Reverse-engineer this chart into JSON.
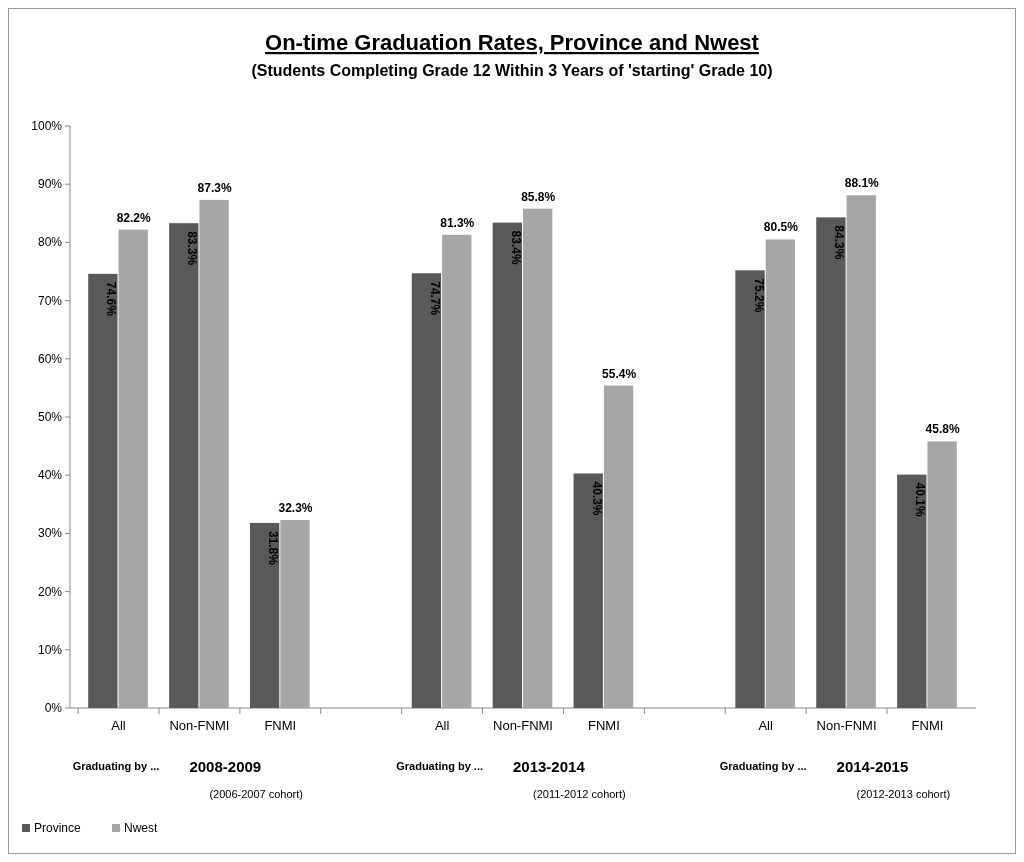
{
  "chart_data": {
    "type": "bar",
    "title": "On-time Graduation Rates, Province and Nwest",
    "subtitle": "(Students Completing Grade 12 Within 3 Years of 'starting' Grade 10)",
    "categories": [
      "All",
      "Non-FNMI",
      "FNMI",
      null,
      "All",
      "Non-FNMI",
      "FNMI",
      null,
      "All",
      "Non-FNMI",
      "FNMI"
    ],
    "series": [
      {
        "name": "Province",
        "color": "#595959",
        "values": [
          74.6,
          83.3,
          31.8,
          null,
          74.7,
          83.4,
          40.3,
          null,
          75.2,
          84.3,
          40.1
        ],
        "value_labels": [
          "74.6%",
          "83.3%",
          "31.8%",
          null,
          "74.7%",
          "83.4%",
          "40.3%",
          null,
          "75.2%",
          "84.3%",
          "40.1%"
        ]
      },
      {
        "name": "Nwest",
        "color": "#a6a6a6",
        "values": [
          82.2,
          87.3,
          32.3,
          null,
          81.3,
          85.8,
          55.4,
          null,
          80.5,
          88.1,
          45.8
        ],
        "value_labels": [
          "82.2%",
          "87.3%",
          "32.3%",
          null,
          "81.3%",
          "85.8%",
          "55.4%",
          null,
          "80.5%",
          "88.1%",
          "45.8%"
        ]
      }
    ],
    "ylim": [
      0,
      100
    ],
    "yticks": [
      {
        "value": 0,
        "label": "0%"
      },
      {
        "value": 10,
        "label": "10%"
      },
      {
        "value": 20,
        "label": "20%"
      },
      {
        "value": 30,
        "label": "30%"
      },
      {
        "value": 40,
        "label": "40%"
      },
      {
        "value": 50,
        "label": "50%"
      },
      {
        "value": 60,
        "label": "60%"
      },
      {
        "value": 70,
        "label": "70%"
      },
      {
        "value": 80,
        "label": "80%"
      },
      {
        "value": 90,
        "label": "90%"
      },
      {
        "value": 100,
        "label": "100%"
      }
    ],
    "legend": "bottom left",
    "annotations": [
      "Graduating by ...",
      "2008-2009",
      "(2006-2007 cohort)",
      "Graduating by ...",
      "2013-2014",
      "(2011-2012 cohort)",
      "Graduating by ...",
      "2014-2015",
      "(2012-2013 cohort)"
    ]
  }
}
